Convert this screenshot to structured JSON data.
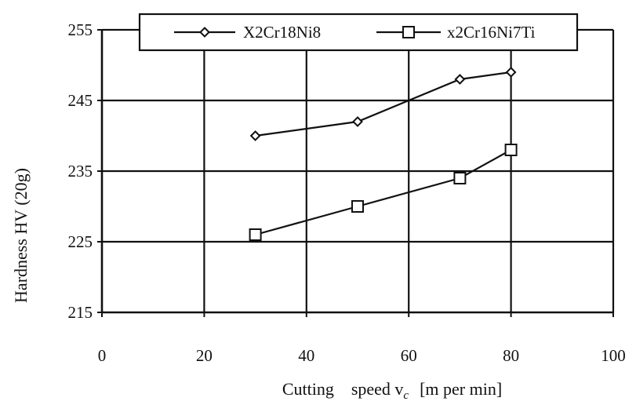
{
  "chart_data": {
    "type": "line",
    "title": "",
    "xlabel": "Cutting    speed v",
    "xlabel_subscript": "c",
    "xlabel_unit": "[m per min]",
    "ylabel": "Hardness     HV (20g)",
    "xlim": [
      0,
      100
    ],
    "ylim": [
      215,
      255
    ],
    "xticks": [
      0,
      20,
      40,
      60,
      80,
      100
    ],
    "yticks": [
      215,
      225,
      235,
      245,
      255
    ],
    "grid": true,
    "legend_position": "top",
    "series": [
      {
        "name": "X2Cr18Ni8",
        "marker": "diamond",
        "x": [
          30,
          50,
          70,
          80
        ],
        "y": [
          240,
          242,
          248,
          249
        ]
      },
      {
        "name": "x2Cr16Ni7Ti",
        "marker": "square",
        "x": [
          30,
          50,
          70,
          80
        ],
        "y": [
          226,
          230,
          234,
          238
        ]
      }
    ]
  }
}
